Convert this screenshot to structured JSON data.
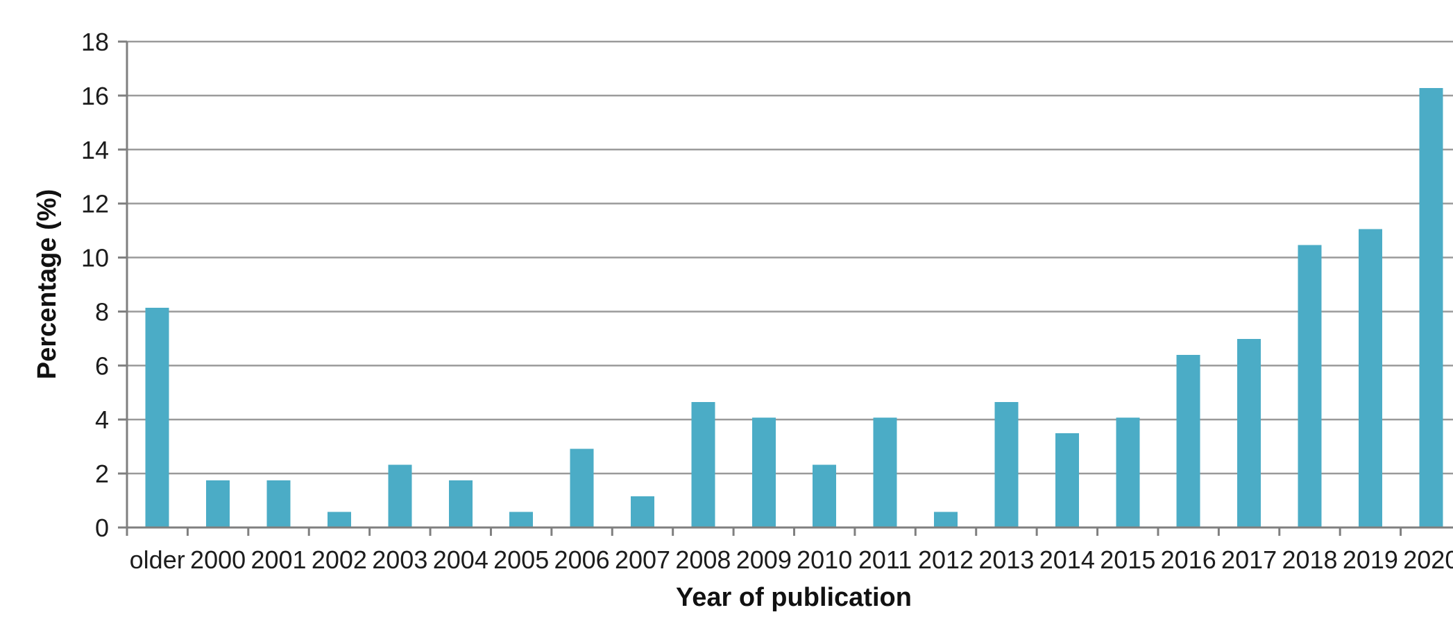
{
  "chart_data": {
    "type": "bar",
    "title": "",
    "xlabel": "Year of publication",
    "ylabel": "Percentage (%)",
    "categories": [
      "older",
      "2000",
      "2001",
      "2002",
      "2003",
      "2004",
      "2005",
      "2006",
      "2007",
      "2008",
      "2009",
      "2010",
      "2011",
      "2012",
      "2013",
      "2014",
      "2015",
      "2016",
      "2017",
      "2018",
      "2019",
      "2020"
    ],
    "values": [
      8.14,
      1.74,
      1.74,
      0.58,
      2.33,
      1.74,
      0.58,
      2.91,
      1.16,
      4.65,
      4.07,
      2.33,
      4.07,
      0.58,
      4.65,
      3.49,
      4.07,
      6.4,
      6.98,
      10.47,
      11.05,
      16.28
    ],
    "ylim": [
      0,
      18
    ],
    "ytick_step": 2,
    "yticks": [
      0,
      2,
      4,
      6,
      8,
      10,
      12,
      14,
      16,
      18
    ],
    "grid": true,
    "legend": false,
    "colors": {
      "bar": "#4BACC6",
      "grid": "#9A9A9A",
      "axis": "#7F7F7F",
      "text": "#1c1c1c",
      "background": "#FFFFFF"
    }
  }
}
